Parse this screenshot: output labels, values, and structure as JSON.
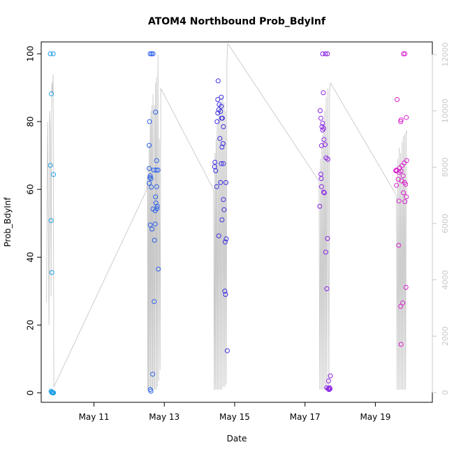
{
  "chart_data": {
    "type": "scatter",
    "title": "ATOM4 Northbound Prob_BdyInf",
    "xlabel": "Date",
    "ylabel": "Prob_BdyInf",
    "xlim": [
      9.5,
      20.62
    ],
    "ylim": [
      -2.8,
      103.5
    ],
    "x_ticks": [
      11,
      13,
      15,
      17,
      19
    ],
    "x_tick_labels": [
      "May 11",
      "May 13",
      "May 15",
      "May 17",
      "May 19"
    ],
    "y_ticks": [
      0,
      20,
      40,
      60,
      80,
      100
    ],
    "y_tick_labels": [
      "0",
      "20",
      "40",
      "60",
      "80",
      "100"
    ],
    "y2lim": [
      -350,
      12450
    ],
    "y2_ticks": [
      0,
      2000,
      4000,
      6000,
      8000,
      10000,
      12000
    ],
    "y2_tick_labels": [
      "0",
      "2000",
      "4000",
      "6000",
      "8000",
      "10000",
      "12000"
    ],
    "grid": false,
    "colors": {
      "cluster_1": "#1a9ee8",
      "cluster_2": "#2a5fe8",
      "cluster_3": "#3a2ee0",
      "cluster_4": "#8a22e6",
      "cluster_5": "#d822cc",
      "trace": "#c8c8c8",
      "axis": "#000000",
      "right_axis": "#c8c8c8"
    },
    "series": [
      {
        "color_key": "cluster_1",
        "points": [
          [
            9.76,
            100
          ],
          [
            9.84,
            100
          ],
          [
            9.79,
            88.2
          ],
          [
            9.76,
            67.1
          ],
          [
            9.85,
            64.4
          ],
          [
            9.78,
            50.8
          ],
          [
            9.8,
            35.5
          ],
          [
            9.78,
            0.5
          ],
          [
            9.8,
            0.2
          ],
          [
            9.82,
            0.0
          ],
          [
            9.83,
            0.0
          ],
          [
            9.84,
            0.0
          ],
          [
            9.8,
            0.1
          ],
          [
            9.83,
            0.1
          ],
          [
            9.85,
            0.0
          ]
        ]
      },
      {
        "color_key": "cluster_2",
        "points": [
          [
            12.6,
            100
          ],
          [
            12.64,
            100
          ],
          [
            12.68,
            100
          ],
          [
            12.75,
            82.8
          ],
          [
            12.58,
            80.0
          ],
          [
            12.57,
            73.0
          ],
          [
            12.78,
            68.5
          ],
          [
            12.57,
            66.2
          ],
          [
            12.7,
            65.7
          ],
          [
            12.77,
            65.7
          ],
          [
            12.82,
            65.7
          ],
          [
            12.6,
            64.0
          ],
          [
            12.59,
            63.5
          ],
          [
            12.62,
            63.2
          ],
          [
            12.57,
            61.8
          ],
          [
            12.78,
            60.8
          ],
          [
            12.63,
            60.7
          ],
          [
            12.75,
            57.8
          ],
          [
            12.76,
            56.0
          ],
          [
            12.8,
            55.0
          ],
          [
            12.68,
            54.2
          ],
          [
            12.79,
            54.3
          ],
          [
            12.74,
            53.7
          ],
          [
            12.6,
            49.5
          ],
          [
            12.74,
            49.8
          ],
          [
            12.65,
            48.3
          ],
          [
            12.72,
            45.0
          ],
          [
            12.83,
            36.5
          ],
          [
            12.71,
            26.9
          ],
          [
            12.67,
            5.5
          ],
          [
            12.6,
            1.0
          ],
          [
            12.62,
            0.5
          ]
        ]
      },
      {
        "color_key": "cluster_3",
        "points": [
          [
            14.53,
            92.0
          ],
          [
            14.62,
            87.2
          ],
          [
            14.52,
            86.5
          ],
          [
            14.56,
            85.0
          ],
          [
            14.62,
            84.5
          ],
          [
            14.55,
            83.5
          ],
          [
            14.6,
            83.0
          ],
          [
            14.52,
            82.5
          ],
          [
            14.63,
            81.0
          ],
          [
            14.65,
            81.0
          ],
          [
            14.5,
            80.0
          ],
          [
            14.68,
            78.5
          ],
          [
            14.58,
            75.0
          ],
          [
            14.67,
            73.5
          ],
          [
            14.64,
            72.5
          ],
          [
            14.44,
            68.0
          ],
          [
            14.62,
            67.6
          ],
          [
            14.68,
            67.6
          ],
          [
            14.43,
            66.7
          ],
          [
            14.46,
            65.5
          ],
          [
            14.6,
            62.0
          ],
          [
            14.75,
            62.0
          ],
          [
            14.49,
            60.8
          ],
          [
            14.68,
            57.0
          ],
          [
            14.7,
            54.0
          ],
          [
            14.64,
            51.0
          ],
          [
            14.55,
            46.3
          ],
          [
            14.76,
            45.4
          ],
          [
            14.73,
            44.5
          ],
          [
            14.72,
            30.0
          ],
          [
            14.74,
            29.0
          ],
          [
            14.79,
            12.4
          ]
        ]
      },
      {
        "color_key": "cluster_4",
        "points": [
          [
            17.5,
            100
          ],
          [
            17.58,
            100
          ],
          [
            17.64,
            100
          ],
          [
            17.52,
            88.5
          ],
          [
            17.43,
            83.2
          ],
          [
            17.45,
            81.0
          ],
          [
            17.5,
            79.5
          ],
          [
            17.48,
            78.5
          ],
          [
            17.53,
            78.0
          ],
          [
            17.5,
            77.5
          ],
          [
            17.54,
            74.7
          ],
          [
            17.47,
            72.9
          ],
          [
            17.57,
            73.2
          ],
          [
            17.6,
            69.3
          ],
          [
            17.65,
            68.9
          ],
          [
            17.45,
            64.5
          ],
          [
            17.46,
            63.2
          ],
          [
            17.47,
            60.8
          ],
          [
            17.53,
            59.2
          ],
          [
            17.55,
            59.0
          ],
          [
            17.42,
            55.0
          ],
          [
            17.64,
            45.5
          ],
          [
            17.59,
            41.5
          ],
          [
            17.62,
            30.7
          ],
          [
            17.72,
            5.0
          ],
          [
            17.67,
            3.5
          ],
          [
            17.62,
            1.5
          ],
          [
            17.68,
            1.0
          ],
          [
            17.7,
            1.5
          ],
          [
            17.66,
            1.2
          ],
          [
            17.71,
            1.2
          ],
          [
            17.69,
            1.0
          ]
        ]
      },
      {
        "color_key": "cluster_5",
        "points": [
          [
            19.8,
            100
          ],
          [
            19.84,
            100
          ],
          [
            19.62,
            86.5
          ],
          [
            19.73,
            80.5
          ],
          [
            19.72,
            80.0
          ],
          [
            19.88,
            81.2
          ],
          [
            19.89,
            68.5
          ],
          [
            19.82,
            67.8
          ],
          [
            19.76,
            67.0
          ],
          [
            19.69,
            66.3
          ],
          [
            19.6,
            65.7
          ],
          [
            19.58,
            65.5
          ],
          [
            19.61,
            65.5
          ],
          [
            19.73,
            65.4
          ],
          [
            19.67,
            65.0
          ],
          [
            19.79,
            64.0
          ],
          [
            19.65,
            63.0
          ],
          [
            19.75,
            62.5
          ],
          [
            19.83,
            62.0
          ],
          [
            19.86,
            61.5
          ],
          [
            19.6,
            61.2
          ],
          [
            19.8,
            59.0
          ],
          [
            19.88,
            57.8
          ],
          [
            19.67,
            56.6
          ],
          [
            19.84,
            56.4
          ],
          [
            19.66,
            43.5
          ],
          [
            19.87,
            31.1
          ],
          [
            19.78,
            26.5
          ],
          [
            19.72,
            25.5
          ],
          [
            19.73,
            14.3
          ]
        ]
      }
    ],
    "trace": {
      "axis": "right",
      "color_key": "trace",
      "segments": [
        [
          [
            9.65,
            3200
          ],
          [
            9.68,
            9600
          ],
          [
            9.7,
            6500
          ],
          [
            9.72,
            2400
          ],
          [
            9.74,
            10000
          ],
          [
            9.76,
            9200
          ],
          [
            9.78,
            3400
          ],
          [
            9.8,
            11000
          ],
          [
            9.82,
            10600
          ],
          [
            9.84,
            11300
          ],
          [
            9.86,
            200
          ]
        ],
        [
          [
            9.86,
            200
          ],
          [
            12.5,
            7200
          ]
        ],
        [
          [
            12.5,
            7200
          ],
          [
            12.52,
            7700
          ],
          [
            12.53,
            100
          ],
          [
            12.54,
            8000
          ],
          [
            12.55,
            100
          ],
          [
            12.57,
            8800
          ],
          [
            12.58,
            100
          ],
          [
            12.6,
            9500
          ],
          [
            12.61,
            100
          ],
          [
            12.62,
            10000
          ],
          [
            12.64,
            100
          ],
          [
            12.65,
            10200
          ],
          [
            12.67,
            100
          ],
          [
            12.68,
            10600
          ],
          [
            12.7,
            100
          ],
          [
            12.72,
            10200
          ],
          [
            12.73,
            100
          ],
          [
            12.75,
            11000
          ],
          [
            12.77,
            100
          ],
          [
            12.78,
            11200
          ],
          [
            12.8,
            200
          ],
          [
            12.82,
            12000
          ],
          [
            12.84,
            400
          ],
          [
            12.86,
            9000
          ],
          [
            12.88,
            800
          ],
          [
            12.9,
            10800
          ]
        ],
        [
          [
            12.9,
            10800
          ],
          [
            14.4,
            7200
          ]
        ],
        [
          [
            14.4,
            7200
          ],
          [
            14.42,
            100
          ],
          [
            14.44,
            8500
          ],
          [
            14.45,
            100
          ],
          [
            14.47,
            9000
          ],
          [
            14.49,
            100
          ],
          [
            14.5,
            9500
          ],
          [
            14.52,
            100
          ],
          [
            14.54,
            9900
          ],
          [
            14.56,
            100
          ],
          [
            14.58,
            10200
          ],
          [
            14.6,
            100
          ],
          [
            14.62,
            10500
          ],
          [
            14.64,
            100
          ],
          [
            14.66,
            10500
          ],
          [
            14.68,
            200
          ],
          [
            14.7,
            10300
          ],
          [
            14.72,
            200
          ],
          [
            14.74,
            10000
          ],
          [
            14.76,
            300
          ],
          [
            14.78,
            11700
          ],
          [
            14.8,
            12400
          ]
        ],
        [
          [
            14.8,
            12400
          ],
          [
            17.4,
            7500
          ]
        ],
        [
          [
            17.4,
            7500
          ],
          [
            17.42,
            100
          ],
          [
            17.44,
            8300
          ],
          [
            17.46,
            100
          ],
          [
            17.48,
            9000
          ],
          [
            17.5,
            100
          ],
          [
            17.52,
            9600
          ],
          [
            17.54,
            100
          ],
          [
            17.56,
            10000
          ],
          [
            17.58,
            100
          ],
          [
            17.6,
            10500
          ],
          [
            17.62,
            100
          ],
          [
            17.65,
            10800
          ],
          [
            17.68,
            100
          ],
          [
            17.7,
            10700
          ],
          [
            17.72,
            11000
          ]
        ],
        [
          [
            17.72,
            11000
          ],
          [
            19.6,
            7000
          ]
        ],
        [
          [
            19.6,
            7000
          ],
          [
            19.62,
            100
          ],
          [
            19.64,
            8300
          ],
          [
            19.66,
            100
          ],
          [
            19.68,
            8700
          ],
          [
            19.7,
            100
          ],
          [
            19.72,
            8500
          ],
          [
            19.74,
            100
          ],
          [
            19.76,
            8900
          ],
          [
            19.78,
            100
          ],
          [
            19.8,
            9100
          ],
          [
            19.82,
            100
          ],
          [
            19.84,
            9200
          ],
          [
            19.86,
            100
          ],
          [
            19.88,
            9300
          ],
          [
            19.9,
            9200
          ]
        ]
      ]
    }
  }
}
